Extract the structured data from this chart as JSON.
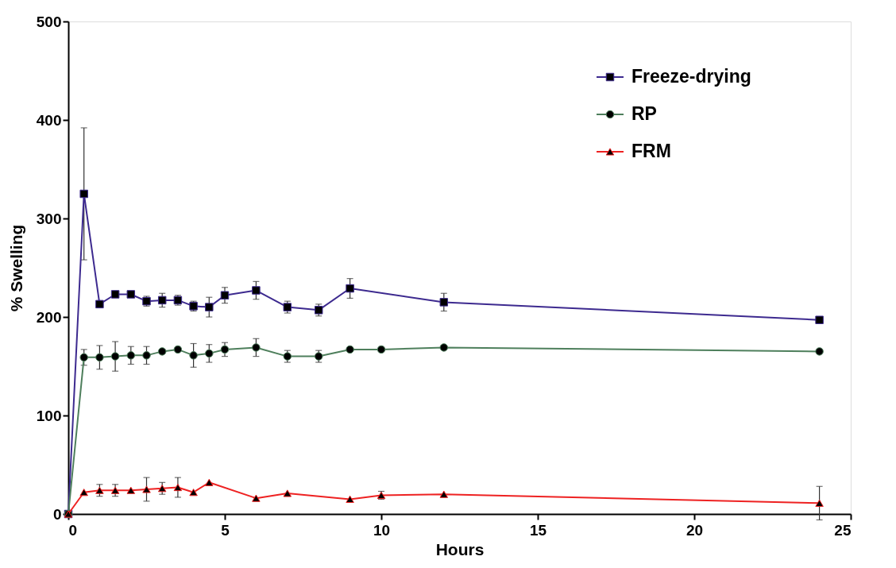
{
  "chart_data": {
    "type": "line",
    "xlabel": "Hours",
    "ylabel": "% Swelling",
    "x": [
      0,
      0.5,
      1,
      1.5,
      2,
      2.5,
      3,
      3.5,
      4,
      4.5,
      5,
      6,
      7,
      8,
      9,
      12,
      24
    ],
    "xlim": [
      0,
      25
    ],
    "xticks": [
      0,
      5,
      10,
      15,
      20,
      25
    ],
    "ylim": [
      0,
      500
    ],
    "yticks": [
      0,
      100,
      200,
      300,
      400,
      500
    ],
    "grid": false,
    "legend": "top right",
    "line_style": "solid",
    "series": [
      {
        "name": "Freeze-drying",
        "color": "#3d2a8f",
        "marker": "square",
        "values": [
          0,
          325,
          213,
          223,
          223,
          216,
          217,
          217,
          211,
          210,
          222,
          227,
          210,
          207,
          229,
          215,
          197
        ],
        "errors": [
          null,
          67,
          3,
          2,
          2,
          5,
          7,
          5,
          5,
          10,
          8,
          9,
          6,
          6,
          10,
          9,
          3
        ]
      },
      {
        "name": "RP",
        "color": "#4e7f5c",
        "marker": "circle",
        "x": [
          0,
          0.5,
          1,
          1.5,
          2,
          2.5,
          3,
          3.5,
          4,
          4.5,
          5,
          6,
          7,
          8,
          9,
          10,
          12,
          24
        ],
        "values": [
          0,
          159,
          159,
          160,
          161,
          161,
          165,
          167,
          161,
          163,
          167,
          169,
          160,
          160,
          167,
          167,
          169,
          165
        ],
        "errors": [
          null,
          8,
          12,
          15,
          9,
          9,
          null,
          null,
          12,
          9,
          7,
          9,
          6,
          6,
          null,
          null,
          null,
          null
        ]
      },
      {
        "name": "FRM",
        "color": "#ee2222",
        "marker": "triangle",
        "x": [
          0,
          0.5,
          1,
          1.5,
          2,
          2.5,
          3,
          3.5,
          4,
          4.5,
          6,
          7,
          9,
          10,
          12,
          24
        ],
        "values": [
          0,
          22,
          24,
          24,
          24,
          25,
          26,
          27,
          22,
          32,
          16,
          21,
          15,
          19,
          20,
          11
        ],
        "errors": [
          null,
          null,
          6,
          6,
          null,
          12,
          6,
          10,
          null,
          null,
          null,
          null,
          null,
          4,
          null,
          17
        ]
      }
    ]
  }
}
